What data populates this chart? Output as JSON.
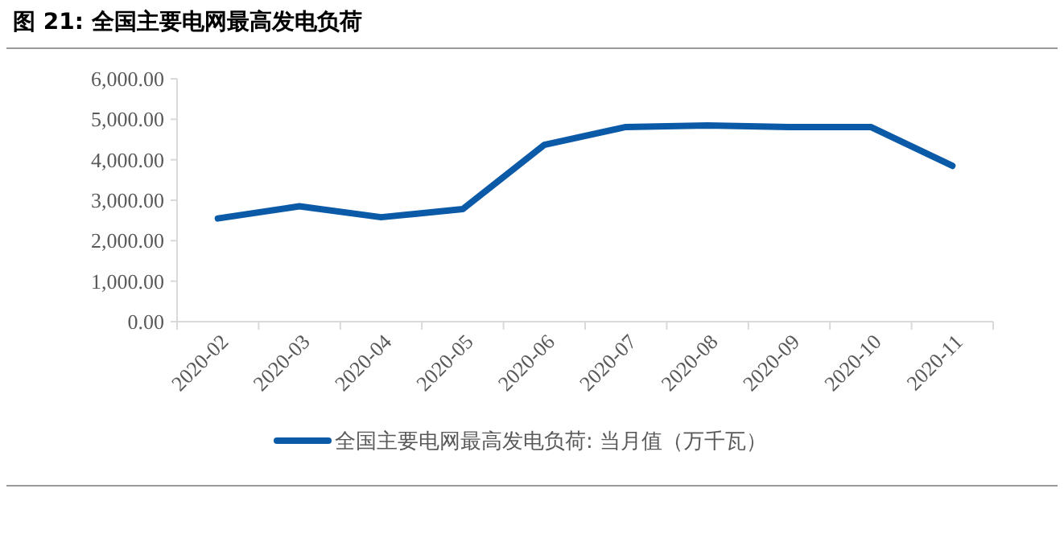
{
  "chart_data": {
    "type": "line",
    "title": "图 21:  全国主要电网最高发电负荷",
    "categories": [
      "2020-02",
      "2020-03",
      "2020-04",
      "2020-05",
      "2020-06",
      "2020-07",
      "2020-08",
      "2020-09",
      "2020-10",
      "2020-11"
    ],
    "series": [
      {
        "name": "全国主要电网最高发电负荷: 当月值（万千瓦）",
        "color": "#0b5aa8",
        "values": [
          2550,
          2850,
          2580,
          2780,
          4370,
          4810,
          4850,
          4810,
          4810,
          3850
        ]
      }
    ],
    "ylim": [
      0,
      6000
    ],
    "yticks": [
      {
        "value": 0,
        "label": "0.00"
      },
      {
        "value": 1000,
        "label": "1,000.00"
      },
      {
        "value": 2000,
        "label": "2,000.00"
      },
      {
        "value": 3000,
        "label": "3,000.00"
      },
      {
        "value": 4000,
        "label": "4,000.00"
      },
      {
        "value": 5000,
        "label": "5,000.00"
      },
      {
        "value": 6000,
        "label": "6,000.00"
      }
    ],
    "grid": false,
    "legend": "bottom",
    "marker": "none",
    "line_style": "solid"
  }
}
